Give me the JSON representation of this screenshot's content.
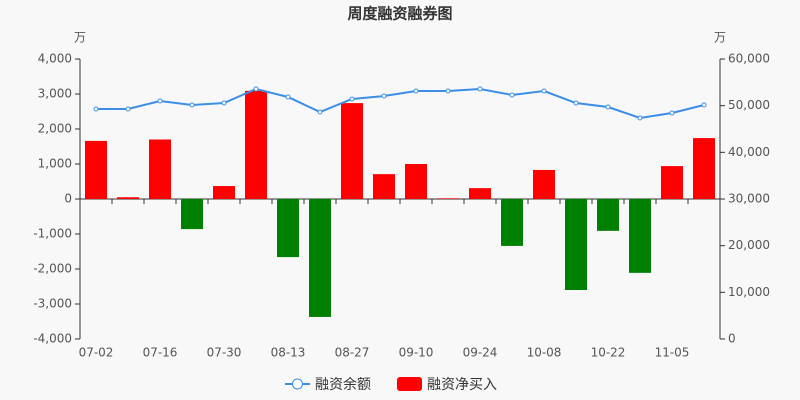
{
  "chart_data": {
    "type": "bar-line",
    "title": "周度融资融券图",
    "y_label": "万",
    "y2_label": "万",
    "categories": [
      "07-02",
      null,
      "07-16",
      null,
      "07-30",
      null,
      "08-13",
      null,
      "08-27",
      null,
      "09-10",
      null,
      "09-24",
      null,
      "10-08",
      null,
      "10-22",
      null,
      "11-05",
      null
    ],
    "series": [
      {
        "name": "融资余额",
        "type": "line",
        "axis": "y2",
        "color": "#3a8ee6",
        "values": [
          49290,
          49290,
          51000,
          50140,
          50570,
          53570,
          51860,
          48640,
          51430,
          52070,
          53140,
          53140,
          53570,
          52290,
          53140,
          50570,
          49710,
          47360,
          48430,
          50140
        ]
      },
      {
        "name": "融资净买入",
        "type": "bar",
        "color": "#ff0000",
        "negative_color": "#008000",
        "values": [
          1660,
          50,
          1700,
          -860,
          370,
          3090,
          -1660,
          -3370,
          2740,
          710,
          1000,
          20,
          310,
          -1340,
          830,
          -2600,
          -910,
          -2110,
          940,
          1740
        ]
      }
    ],
    "ylim": [
      -4000,
      4000
    ],
    "yticks": [
      {
        "value": -4000,
        "label": "-4,000"
      },
      {
        "value": -3000,
        "label": "-3,000"
      },
      {
        "value": -2000,
        "label": "-2,000"
      },
      {
        "value": -1000,
        "label": "-1,000"
      },
      0,
      {
        "value": 1000,
        "label": "1,000"
      },
      {
        "value": 2000,
        "label": "2,000"
      },
      {
        "value": 3000,
        "label": "3,000"
      },
      {
        "value": 4000,
        "label": "4,000"
      }
    ],
    "y2lim": [
      0,
      60000
    ],
    "y2ticks": [
      0,
      {
        "value": 10000,
        "label": "10,000"
      },
      {
        "value": 20000,
        "label": "20,000"
      },
      {
        "value": 30000,
        "label": "30,000"
      },
      {
        "value": 40000,
        "label": "40,000"
      },
      {
        "value": 50000,
        "label": "50,000"
      },
      {
        "value": 60000,
        "label": "60,000"
      }
    ]
  }
}
